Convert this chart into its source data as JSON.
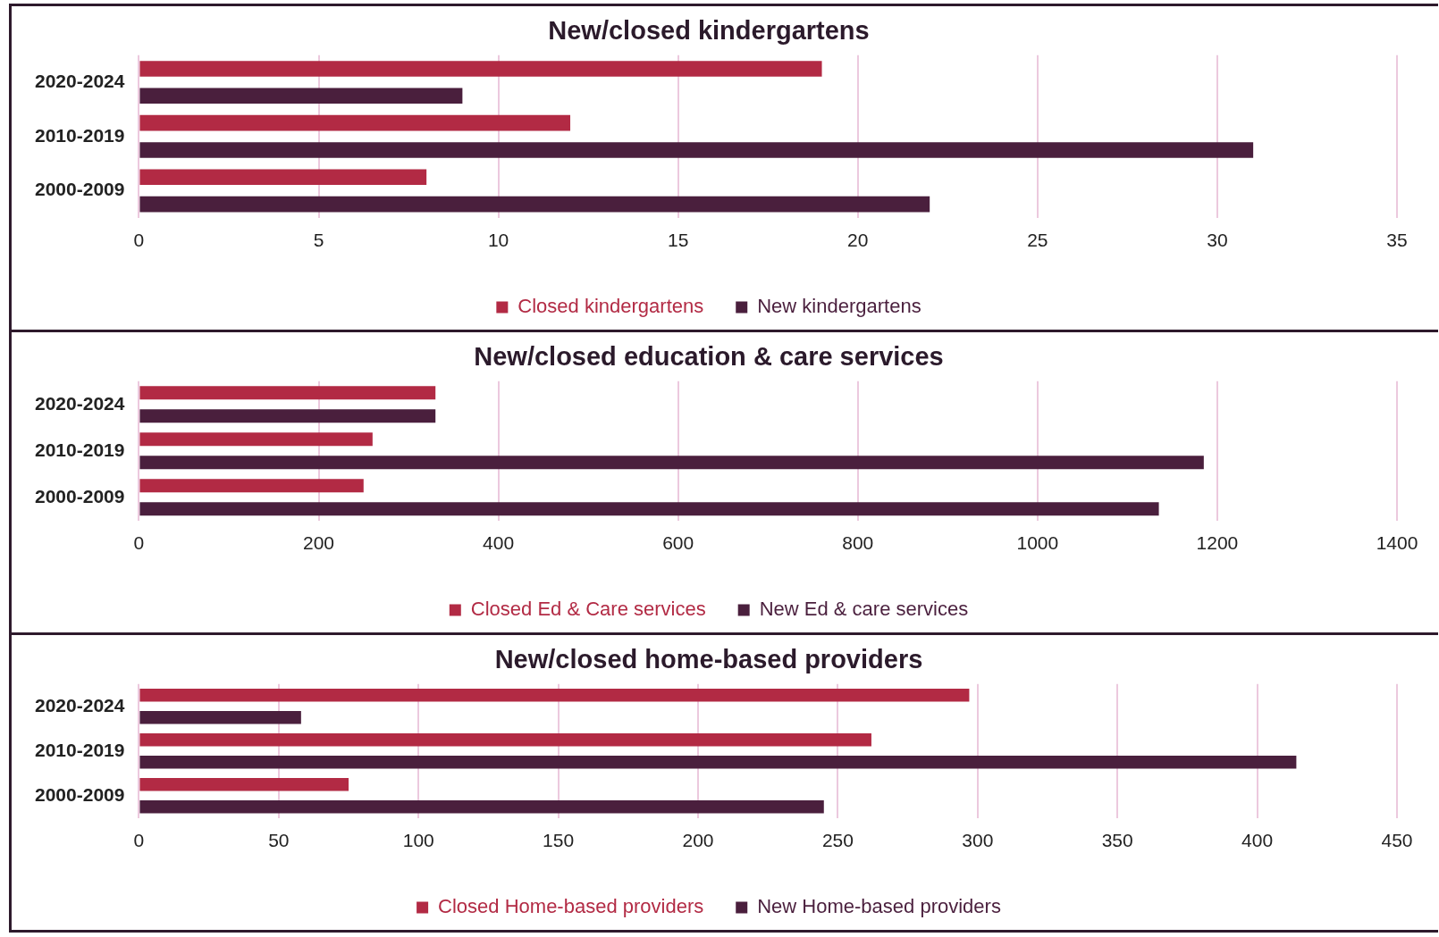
{
  "chart_data": [
    {
      "type": "bar",
      "orientation": "horizontal",
      "title": "New/closed kindergartens",
      "categories": [
        "2020-2024",
        "2010-2019",
        "2000-2009"
      ],
      "series": [
        {
          "name": "Closed kindergartens",
          "color": "#b22a44",
          "values": [
            19,
            12,
            8
          ]
        },
        {
          "name": "New kindergartens",
          "color": "#4a1f3d",
          "values": [
            9,
            31,
            22
          ]
        }
      ],
      "xlim": [
        0,
        35
      ],
      "xticks": [
        0,
        5,
        10,
        15,
        20,
        25,
        30,
        35
      ],
      "grid": "x",
      "legend": "bottom"
    },
    {
      "type": "bar",
      "orientation": "horizontal",
      "title": "New/closed education & care services",
      "categories": [
        "2020-2024",
        "2010-2019",
        "2000-2009"
      ],
      "series": [
        {
          "name": "Closed Ed & Care services",
          "color": "#b22a44",
          "values": [
            330,
            260,
            250
          ]
        },
        {
          "name": "New Ed & care services",
          "color": "#4a1f3d",
          "values": [
            330,
            1185,
            1135
          ]
        }
      ],
      "xlim": [
        0,
        1400
      ],
      "xticks": [
        0,
        200,
        400,
        600,
        800,
        1000,
        1200,
        1400
      ],
      "grid": "x",
      "legend": "bottom"
    },
    {
      "type": "bar",
      "orientation": "horizontal",
      "title": "New/closed home-based providers",
      "categories": [
        "2020-2024",
        "2010-2019",
        "2000-2009"
      ],
      "series": [
        {
          "name": "Closed Home-based providers",
          "color": "#b22a44",
          "values": [
            297,
            262,
            75
          ]
        },
        {
          "name": "New Home-based providers",
          "color": "#4a1f3d",
          "values": [
            58,
            414,
            245
          ]
        }
      ],
      "xlim": [
        0,
        450
      ],
      "xticks": [
        0,
        50,
        100,
        150,
        200,
        250,
        300,
        350,
        400,
        450
      ],
      "grid": "x",
      "legend": "bottom"
    }
  ]
}
